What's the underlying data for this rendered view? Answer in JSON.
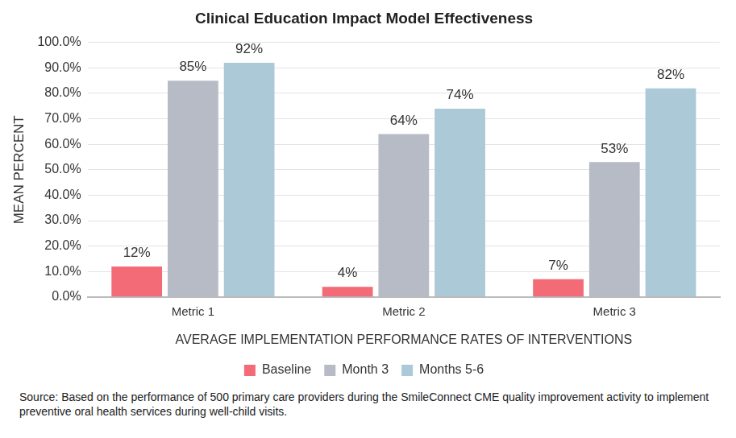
{
  "chart_data": {
    "type": "bar",
    "title": "Clinical Education Impact Model Effectiveness",
    "x_label": "AVERAGE IMPLEMENTATION PERFORMANCE RATES OF INTERVENTIONS",
    "y_label": "MEAN PERCENT",
    "source": "Source: Based on the performance of 500 primary care providers during the SmileConnect CME quality improvement activity to implement preventive oral health services during well-child visits.",
    "categories": [
      "Metric 1",
      "Metric 2",
      "Metric 3"
    ],
    "series": [
      {
        "name": "Baseline",
        "color": "#f26b77",
        "values": [
          12,
          4,
          7
        ],
        "value_labels": [
          "12%",
          "4%",
          "7%"
        ]
      },
      {
        "name": "Month 3",
        "color": "#b7bbc5",
        "values": [
          85,
          64,
          53
        ],
        "value_labels": [
          "85%",
          "64%",
          "53%"
        ]
      },
      {
        "name": "Months 5-6",
        "color": "#abc9d6",
        "values": [
          92,
          74,
          82
        ],
        "value_labels": [
          "92%",
          "74%",
          "82%"
        ]
      }
    ],
    "ylim": [
      0,
      100
    ],
    "yticks": [
      {
        "value": 0,
        "label": "0.0%"
      },
      {
        "value": 10,
        "label": "10.0%"
      },
      {
        "value": 20,
        "label": "20.0%"
      },
      {
        "value": 30,
        "label": "30.0%"
      },
      {
        "value": 40,
        "label": "40.0%"
      },
      {
        "value": 50,
        "label": "50.0%"
      },
      {
        "value": 60,
        "label": "60.0%"
      },
      {
        "value": 70,
        "label": "70.0%"
      },
      {
        "value": 80,
        "label": "80.0%"
      },
      {
        "value": 90,
        "label": "90.0%"
      },
      {
        "value": 100,
        "label": "100.0%"
      }
    ],
    "grid": true,
    "legend": "bottom",
    "data_labels": true
  }
}
